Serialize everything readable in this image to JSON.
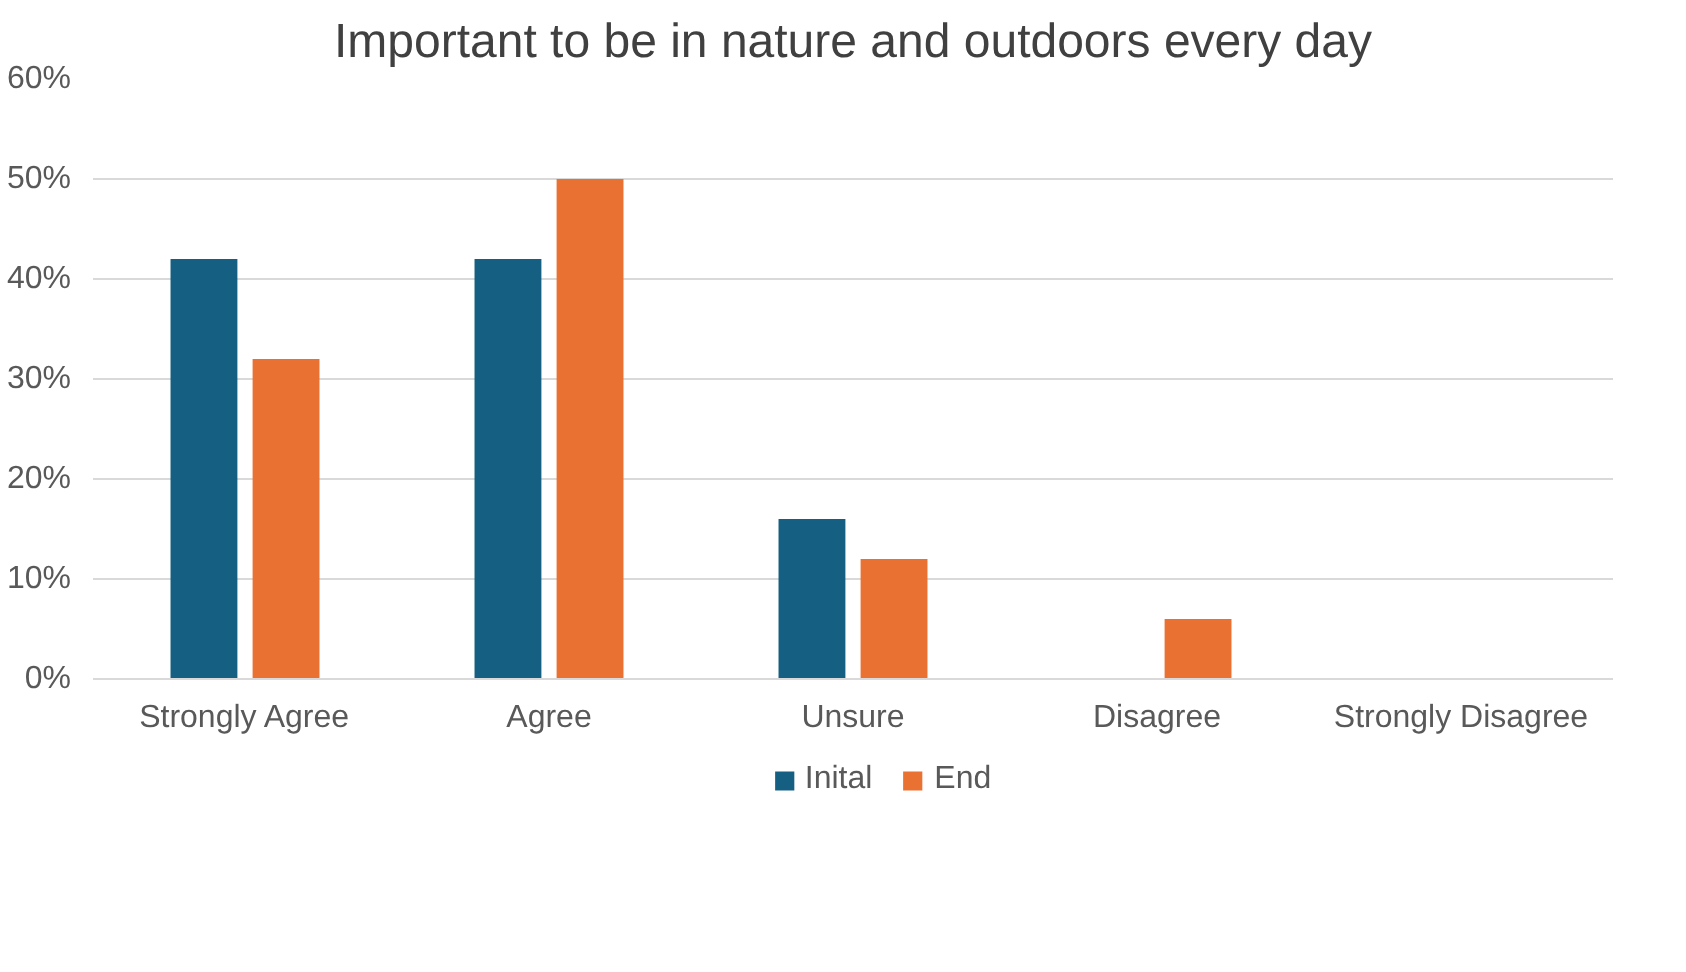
{
  "chart_data": {
    "type": "bar",
    "title": "Important to be in nature and outdoors every day",
    "categories": [
      "Strongly Agree",
      "Agree",
      "Unsure",
      "Disagree",
      "Strongly Disagree"
    ],
    "series": [
      {
        "name": "Inital",
        "color": "#156082",
        "values": [
          42,
          42,
          16,
          0,
          0
        ]
      },
      {
        "name": "End",
        "color": "#e97132",
        "values": [
          32,
          50,
          12,
          6,
          0
        ]
      }
    ],
    "ylim": [
      0,
      60
    ],
    "yticks": [
      {
        "value": 0,
        "label": "0%"
      },
      {
        "value": 10,
        "label": "10%"
      },
      {
        "value": 20,
        "label": "20%"
      },
      {
        "value": 30,
        "label": "30%"
      },
      {
        "value": 40,
        "label": "40%"
      },
      {
        "value": 50,
        "label": "50%"
      },
      {
        "value": 60,
        "label": "60%"
      }
    ],
    "grid": "y",
    "legend": "bottom"
  }
}
